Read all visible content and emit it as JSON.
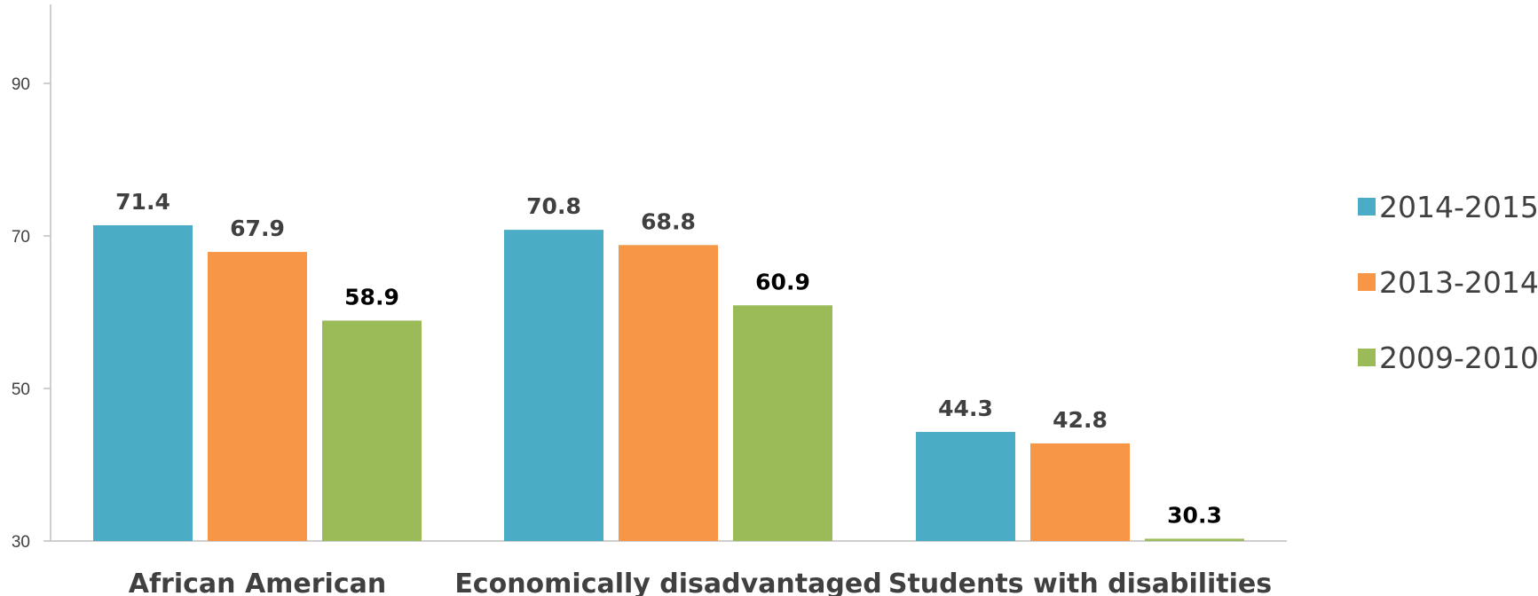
{
  "chart_data": {
    "type": "bar",
    "title": "",
    "xlabel": "",
    "ylabel": "",
    "ylim": [
      30,
      100
    ],
    "yticks": [
      30,
      50,
      70,
      90
    ],
    "grid": false,
    "legend_position": "right",
    "categories": [
      "African American",
      "Economically disadvantaged",
      "Students with disabilities"
    ],
    "series": [
      {
        "name": "2014-2015",
        "color": "#4BACC6",
        "values": [
          71.4,
          70.8,
          44.3
        ],
        "labels": [
          "71.4",
          "70.8",
          "44.3"
        ]
      },
      {
        "name": "2013-2014",
        "color": "#F79646",
        "values": [
          67.9,
          68.8,
          42.8
        ],
        "labels": [
          "67.9",
          "68.8",
          "42.8"
        ]
      },
      {
        "name": "2009-2010",
        "color": "#9BBB59",
        "values": [
          58.9,
          60.9,
          30.3
        ],
        "labels": [
          "58.9",
          "60.9",
          "30.3"
        ]
      }
    ],
    "data_label_colors": [
      "#404040",
      "#404040",
      "#000000"
    ]
  }
}
